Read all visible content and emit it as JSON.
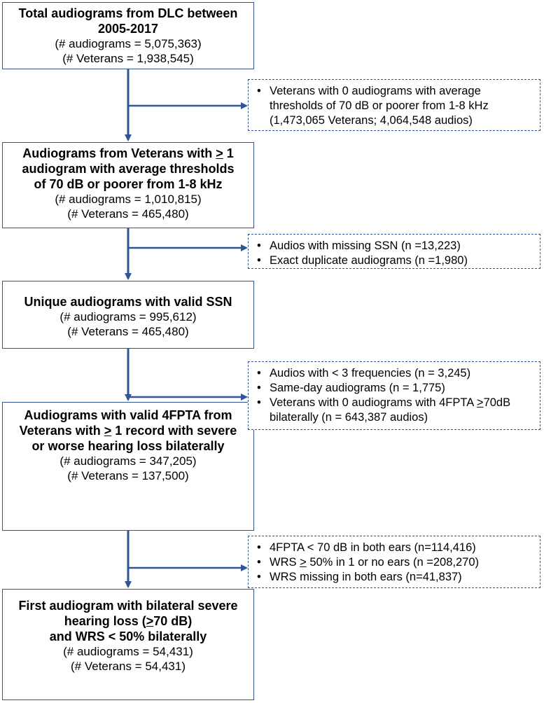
{
  "boxes": [
    {
      "title_html": "Total audiograms from DLC between<br>2005-2017",
      "stats": [
        "(# audiograms = 5,075,363)",
        "(# Veterans = 1,938,545)"
      ]
    },
    {
      "title_html": "Audiograms from Veterans with <span class=\"u\">&gt;</span> 1<br>audiogram with average thresholds<br>of 70 dB or poorer from 1-8 kHz",
      "stats": [
        "(# audiograms = 1,010,815)",
        "(# Veterans = 465,480)"
      ]
    },
    {
      "title_html": "Unique audiograms with valid SSN",
      "stats": [
        "(# audiograms = 995,612)",
        "(# Veterans = 465,480)"
      ]
    },
    {
      "title_html": "Audiograms with valid 4FPTA from<br>Veterans with <span class=\"u\">&gt;</span> 1 record with severe<br>or worse hearing loss bilaterally",
      "stats": [
        "(# audiograms = 347,205)",
        "(# Veterans = 137,500)"
      ]
    },
    {
      "title_html": "First audiogram with bilateral severe<br>hearing loss (<span class=\"u\">&gt;</span>70 dB)<br>and WRS &lt; 50% bilaterally",
      "stats": [
        "(# audiograms = 54,431)",
        "(# Veterans = 54,431)"
      ]
    }
  ],
  "exclusions": [
    {
      "items_html": [
        "Veterans with 0 audiograms with average thresholds of 70 dB or poorer from 1-8 kHz (1,473,065 Veterans; 4,064,548 audios)"
      ]
    },
    {
      "items_html": [
        "Audios with missing SSN (n =13,223)",
        "Exact duplicate audiograms (n =1,980)"
      ]
    },
    {
      "items_html": [
        "Audios with &lt; 3 frequencies (n = 3,245)",
        "Same-day audiograms (n = 1,775)",
        "Veterans with 0 audiograms with 4FPTA <span class=\"u\">&gt;</span>70dB bilaterally (n = 643,387 audios)"
      ]
    },
    {
      "items_html": [
        "4FPTA &lt; 70 dB in both ears (n=114,416)",
        "WRS <span class=\"u\">&gt;</span> 50% in 1 or no ears (n =208,270)",
        "WRS missing in both ears (n=41,837)"
      ]
    }
  ],
  "colors": {
    "stroke": "#2f5597"
  }
}
